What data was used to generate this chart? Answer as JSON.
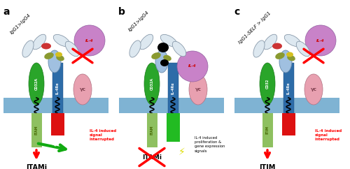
{
  "background_color": "#ffffff",
  "panel_labels": [
    "a",
    "b",
    "c"
  ],
  "membrane_color": "#7fb3d3",
  "cd32_color": "#2aa52a",
  "il4ra_color": "#2d6ca8",
  "gc_color": "#e8a0b0",
  "itam_color": "#8ec060",
  "red_signal_color": "#dd1111",
  "green_bar_color": "#22bb22",
  "green_arrow_color": "#11aa11",
  "il4_color": "#c882c8",
  "ab_white": "#dde8f0",
  "ab_blue": "#a0c0e0",
  "ab_olive": "#8a9a30",
  "ab_red_ep": "#cc3333",
  "ab_yellow": "#d4c020",
  "titles_a": "IgG1>IgG4",
  "titles_b": "IgG1>IgG4",
  "titles_c": "IgG1-SELF > IgG1",
  "text_interrupted": "IL-4 induced\nsignal\ninterrupted",
  "text_b_bottom": "IL-4 induced\nproliferation &\ngene expression\nsignals",
  "text_induce": "Induce"
}
